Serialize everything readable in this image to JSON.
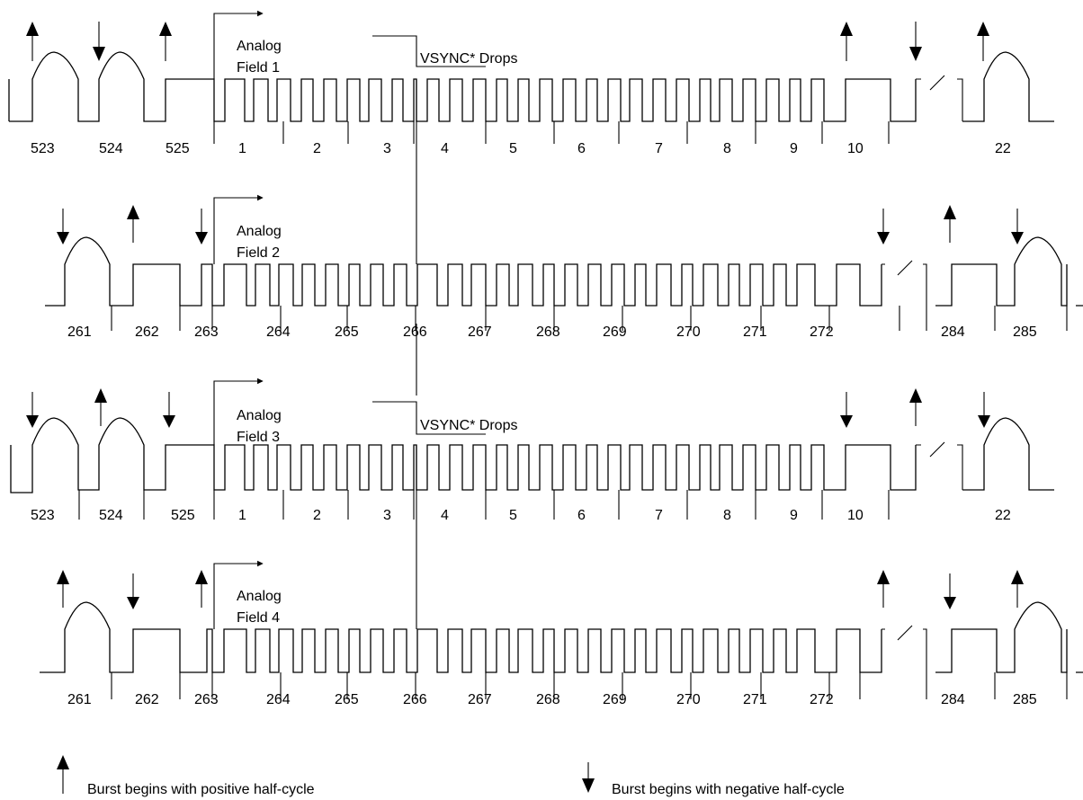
{
  "labels": {
    "analog": "Analog",
    "vsync": "VSYNC* Drops"
  },
  "fields": [
    {
      "name": "Field 1",
      "lines": [
        "523",
        "524",
        "525",
        "1",
        "2",
        "3",
        "4",
        "5",
        "6",
        "7",
        "8",
        "9",
        "10",
        "22"
      ]
    },
    {
      "name": "Field 2",
      "lines": [
        "261",
        "262",
        "263",
        "264",
        "265",
        "266",
        "267",
        "268",
        "269",
        "270",
        "271",
        "272",
        "284",
        "285"
      ]
    },
    {
      "name": "Field 3",
      "lines": [
        "523",
        "524",
        "525",
        "1",
        "2",
        "3",
        "4",
        "5",
        "6",
        "7",
        "8",
        "9",
        "10",
        "22"
      ]
    },
    {
      "name": "Field 4",
      "lines": [
        "261",
        "262",
        "263",
        "264",
        "265",
        "266",
        "267",
        "268",
        "269",
        "270",
        "271",
        "272",
        "284",
        "285"
      ]
    }
  ],
  "legend": {
    "positive": "Burst begins with positive half-cycle",
    "negative": "Burst begins with negative half-cycle",
    "positive_icon": "arrow-up-icon",
    "negative_icon": "arrow-down-icon"
  }
}
